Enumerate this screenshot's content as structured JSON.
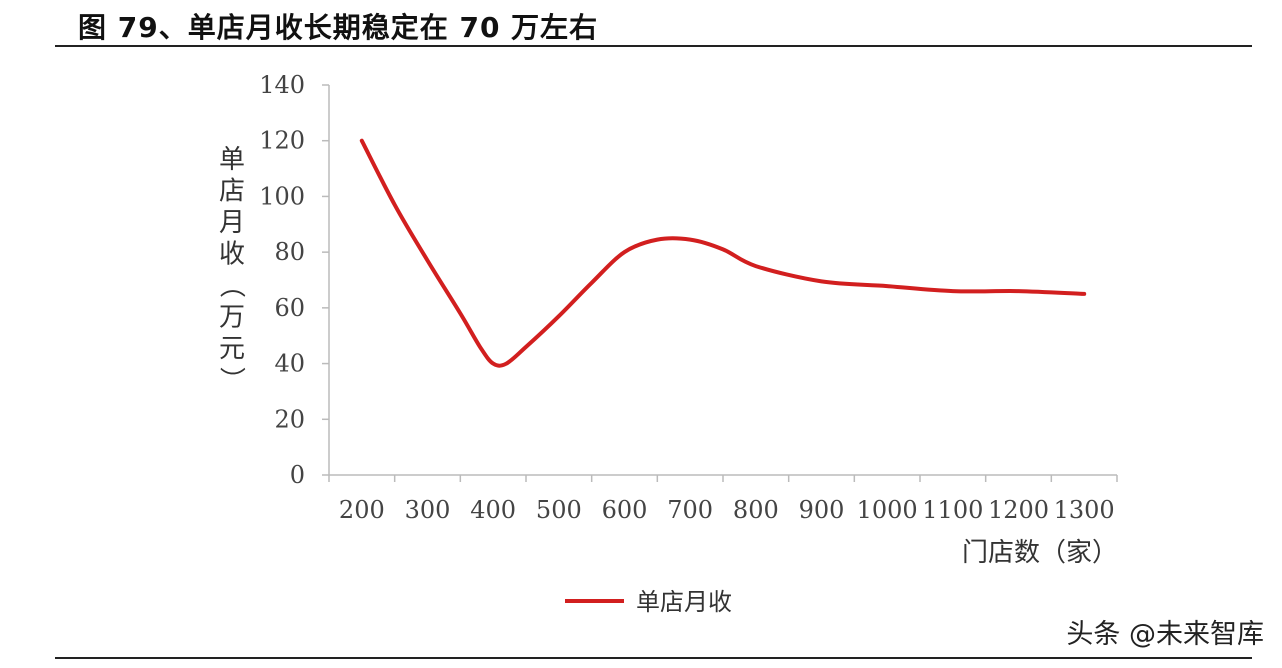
{
  "figure": {
    "title": "图 79、单店月收长期稳定在 70 万左右",
    "watermark": "头条 @未来智库"
  },
  "chart_data": {
    "type": "line",
    "title": "",
    "xlabel": "门店数（家）",
    "ylabel": "单店月收（万元）",
    "x_ticks": [
      200,
      300,
      400,
      500,
      600,
      700,
      800,
      900,
      1000,
      1100,
      1200,
      1300
    ],
    "y_ticks": [
      0,
      20,
      40,
      60,
      80,
      100,
      120,
      140
    ],
    "xlim": [
      150,
      1350
    ],
    "ylim": [
      0,
      140
    ],
    "grid": false,
    "legend_position": "bottom-center",
    "series": [
      {
        "name": "单店月收",
        "color": "#d21f1f",
        "x": [
          200,
          250,
          300,
          350,
          380,
          400,
          420,
          450,
          500,
          550,
          600,
          650,
          700,
          750,
          800,
          900,
          1000,
          1100,
          1200,
          1300
        ],
        "y": [
          120,
          97,
          77,
          58,
          46,
          40,
          40,
          46,
          57,
          69,
          80,
          84.5,
          84.5,
          81,
          75,
          69.5,
          67.8,
          66,
          66,
          65
        ]
      }
    ]
  }
}
